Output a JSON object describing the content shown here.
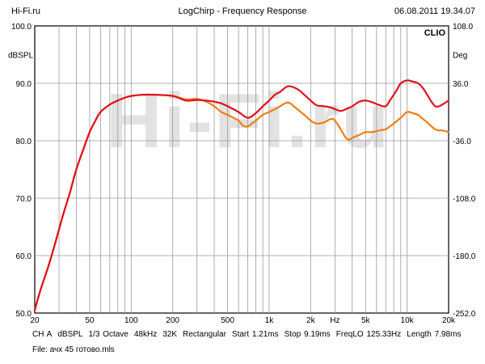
{
  "header": {
    "left": "Hi-Fi.ru",
    "center": "LogChirp - Frequency Response",
    "right": "06.08.2011 19.34.07"
  },
  "footer": {
    "params": [
      "CH A",
      "dBSPL",
      "1/3 Octave",
      "48kHz",
      "32K",
      "Rectangular",
      "Start 1.21ms",
      "Stop 9.19ms",
      "FreqLO 125.33Hz",
      "Length 7.98ms"
    ],
    "file": "File: ачх 45 готово.mls"
  },
  "colors": {
    "series_red": "#e01020",
    "series_orange": "#f07d14",
    "grid": "#9a9a9a",
    "watermark": "#e2e2e2"
  },
  "chart_data": {
    "type": "line",
    "title": "LogChirp - Frequency Response",
    "brand": "CLIO",
    "watermark": "Hi-Fi.ru",
    "xscale": "log",
    "xlim": [
      20,
      20000
    ],
    "xlabel": "Hz",
    "xticks": [
      {
        "v": 20,
        "label": "20"
      },
      {
        "v": 50,
        "label": "50"
      },
      {
        "v": 100,
        "label": "100"
      },
      {
        "v": 200,
        "label": "200"
      },
      {
        "v": 500,
        "label": "500"
      },
      {
        "v": 1000,
        "label": "1k"
      },
      {
        "v": 2000,
        "label": "2k"
      },
      {
        "v": 5000,
        "label": "5k"
      },
      {
        "v": 10000,
        "label": "10k"
      },
      {
        "v": 20000,
        "label": "20k"
      }
    ],
    "ylim": [
      50,
      100
    ],
    "ylabel": "dBSPL",
    "yticks": [
      "50.0",
      "60.0",
      "70.0",
      "80.0",
      "90.0",
      "100.0"
    ],
    "y2lim": [
      -252,
      108
    ],
    "y2label": "Deg",
    "y2ticks": [
      "-252.0",
      "-180.0",
      "-108.0",
      "-36.0",
      "36.0",
      "108.0"
    ],
    "grid": true,
    "series": [
      {
        "color": "#e01020",
        "points": [
          [
            20,
            50.5
          ],
          [
            22,
            54
          ],
          [
            25,
            58
          ],
          [
            28,
            62
          ],
          [
            32,
            67
          ],
          [
            36,
            71
          ],
          [
            40,
            75
          ],
          [
            45,
            78.5
          ],
          [
            50,
            81.5
          ],
          [
            55,
            83.5
          ],
          [
            60,
            85
          ],
          [
            70,
            86.3
          ],
          [
            80,
            87
          ],
          [
            90,
            87.5
          ],
          [
            100,
            87.8
          ],
          [
            120,
            88
          ],
          [
            150,
            88
          ],
          [
            200,
            87.8
          ],
          [
            250,
            87
          ],
          [
            300,
            87.1
          ],
          [
            350,
            87
          ],
          [
            400,
            86.8
          ],
          [
            450,
            86.5
          ],
          [
            500,
            86
          ],
          [
            600,
            85
          ],
          [
            700,
            84
          ],
          [
            800,
            84.8
          ],
          [
            900,
            86
          ],
          [
            1000,
            87
          ],
          [
            1100,
            88
          ],
          [
            1200,
            88.5
          ],
          [
            1300,
            89.2
          ],
          [
            1400,
            89.5
          ],
          [
            1600,
            89
          ],
          [
            1800,
            88
          ],
          [
            2000,
            87
          ],
          [
            2200,
            86.2
          ],
          [
            2500,
            86
          ],
          [
            2800,
            85.8
          ],
          [
            3000,
            85.5
          ],
          [
            3300,
            85.2
          ],
          [
            3600,
            85.5
          ],
          [
            4000,
            86
          ],
          [
            4500,
            86.8
          ],
          [
            5000,
            87
          ],
          [
            5600,
            86.7
          ],
          [
            6300,
            86.2
          ],
          [
            7000,
            86
          ],
          [
            7500,
            87
          ],
          [
            8000,
            88
          ],
          [
            8500,
            89
          ],
          [
            9000,
            90
          ],
          [
            10000,
            90.5
          ],
          [
            11000,
            90.3
          ],
          [
            12000,
            90
          ],
          [
            13000,
            89.2
          ],
          [
            14000,
            88
          ],
          [
            15000,
            86.8
          ],
          [
            16000,
            86
          ],
          [
            17000,
            86
          ],
          [
            18000,
            86.3
          ],
          [
            20000,
            87
          ]
        ]
      },
      {
        "color": "#f07d14",
        "points": [
          [
            20,
            50.5
          ],
          [
            22,
            54
          ],
          [
            25,
            58
          ],
          [
            28,
            62
          ],
          [
            32,
            67
          ],
          [
            36,
            71
          ],
          [
            40,
            75
          ],
          [
            45,
            78.5
          ],
          [
            50,
            81.5
          ],
          [
            55,
            83.5
          ],
          [
            60,
            85
          ],
          [
            70,
            86.3
          ],
          [
            80,
            87
          ],
          [
            90,
            87.5
          ],
          [
            100,
            87.8
          ],
          [
            120,
            88
          ],
          [
            150,
            88
          ],
          [
            200,
            87.8
          ],
          [
            250,
            87.2
          ],
          [
            300,
            87.3
          ],
          [
            350,
            86.8
          ],
          [
            400,
            86
          ],
          [
            450,
            85
          ],
          [
            500,
            84.5
          ],
          [
            550,
            84
          ],
          [
            600,
            83.5
          ],
          [
            650,
            82.6
          ],
          [
            700,
            82.5
          ],
          [
            750,
            83
          ],
          [
            800,
            83.5
          ],
          [
            900,
            84.5
          ],
          [
            1000,
            85
          ],
          [
            1100,
            85.5
          ],
          [
            1200,
            86
          ],
          [
            1300,
            86.5
          ],
          [
            1400,
            86.6
          ],
          [
            1600,
            85.5
          ],
          [
            1800,
            84.5
          ],
          [
            2000,
            83.5
          ],
          [
            2200,
            83
          ],
          [
            2500,
            83.2
          ],
          [
            2800,
            83.8
          ],
          [
            3000,
            83.5
          ],
          [
            3300,
            82
          ],
          [
            3600,
            80.5
          ],
          [
            3800,
            80.2
          ],
          [
            4000,
            80.5
          ],
          [
            4500,
            81
          ],
          [
            5000,
            81.5
          ],
          [
            5600,
            81.5
          ],
          [
            6300,
            81.8
          ],
          [
            7000,
            82
          ],
          [
            7500,
            82.5
          ],
          [
            8000,
            83
          ],
          [
            9000,
            84
          ],
          [
            10000,
            85
          ],
          [
            11000,
            84.8
          ],
          [
            12000,
            84.5
          ],
          [
            13000,
            83.8
          ],
          [
            14000,
            83.2
          ],
          [
            15000,
            82.5
          ],
          [
            16000,
            82
          ],
          [
            17000,
            81.8
          ],
          [
            18000,
            81.8
          ],
          [
            20000,
            81.5
          ]
        ]
      }
    ]
  }
}
